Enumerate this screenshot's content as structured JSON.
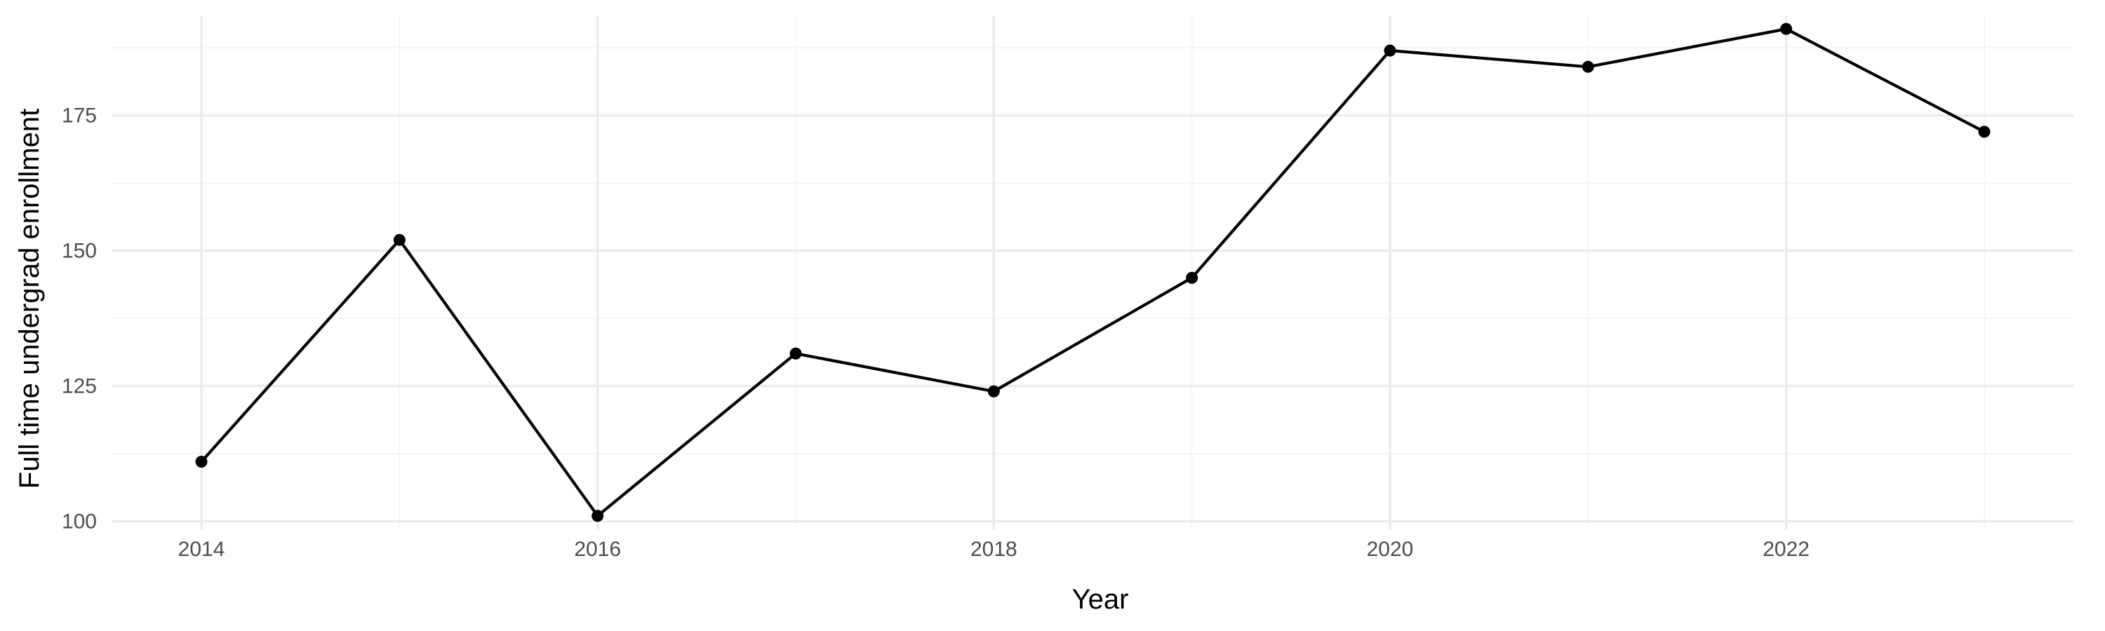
{
  "chart_data": {
    "type": "line",
    "title": "",
    "xlabel": "Year",
    "ylabel": "Full time undergrad enrollment",
    "xlim": [
      2013.55,
      2023.45
    ],
    "ylim": [
      98.5,
      193.5
    ],
    "x_major_ticks": [
      2014,
      2016,
      2018,
      2020,
      2022
    ],
    "x_minor_ticks": [
      2015,
      2017,
      2019,
      2021,
      2023
    ],
    "y_major_ticks": [
      100,
      125,
      150,
      175
    ],
    "y_minor_ticks": [
      112.5,
      137.5,
      162.5,
      187.5
    ],
    "x_tick_labels": [
      "2014",
      "2016",
      "2018",
      "2020",
      "2022"
    ],
    "y_tick_labels": [
      "100",
      "125",
      "150",
      "175"
    ],
    "grid": true,
    "legend": "none",
    "series": [
      {
        "x": [
          2014,
          2015,
          2016,
          2017,
          2018,
          2019,
          2020,
          2021,
          2022,
          2023
        ],
        "values": [
          111,
          152,
          101,
          131,
          124,
          145,
          187,
          184,
          191,
          172
        ],
        "color": "#000000"
      }
    ]
  }
}
